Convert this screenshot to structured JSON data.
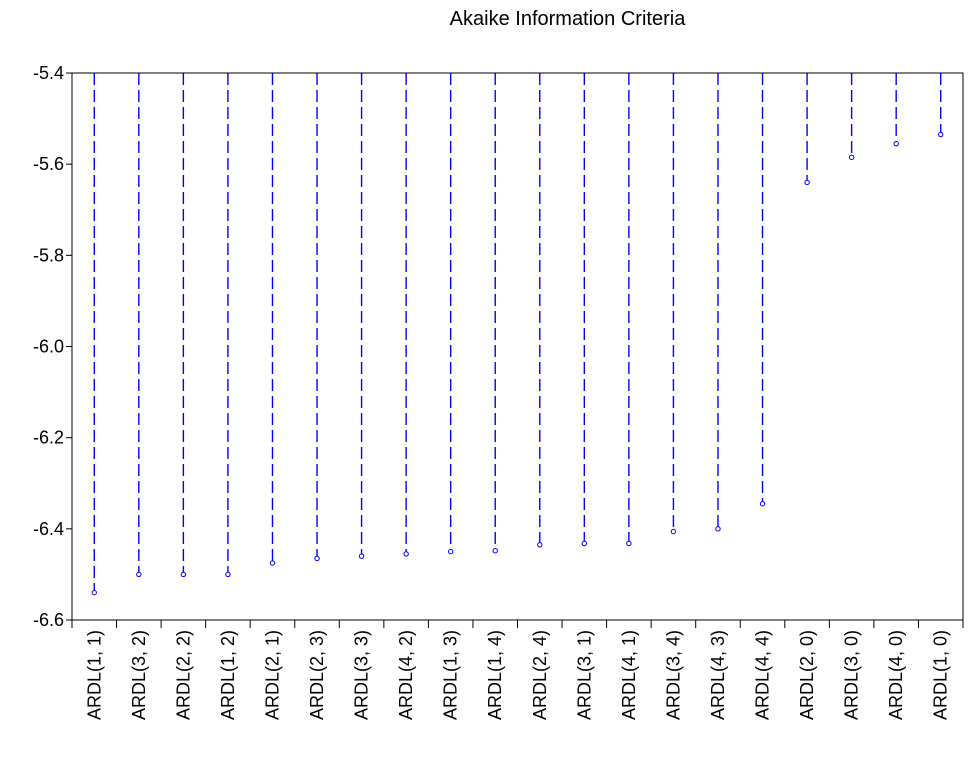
{
  "chart_data": {
    "type": "dropline",
    "title": "Akaike Information Criteria",
    "xlabel": "",
    "ylabel": "",
    "ylim": [
      -6.6,
      -5.4
    ],
    "yticks": [
      "-5.4",
      "-5.6",
      "-5.8",
      "-6.0",
      "-6.2",
      "-6.4",
      "-6.6"
    ],
    "ytick_values": [
      -5.4,
      -5.6,
      -5.8,
      -6.0,
      -6.2,
      -6.4,
      -6.6
    ],
    "categories": [
      "ARDL(1, 1)",
      "ARDL(3, 2)",
      "ARDL(2, 2)",
      "ARDL(1, 2)",
      "ARDL(2, 1)",
      "ARDL(2, 3)",
      "ARDL(3, 3)",
      "ARDL(4, 2)",
      "ARDL(1, 3)",
      "ARDL(1, 4)",
      "ARDL(2, 4)",
      "ARDL(3, 1)",
      "ARDL(4, 1)",
      "ARDL(3, 4)",
      "ARDL(4, 3)",
      "ARDL(4, 4)",
      "ARDL(2, 0)",
      "ARDL(3, 0)",
      "ARDL(4, 0)",
      "ARDL(1, 0)"
    ],
    "values": [
      -6.54,
      -6.5,
      -6.5,
      -6.5,
      -6.475,
      -6.465,
      -6.46,
      -6.455,
      -6.45,
      -6.448,
      -6.435,
      -6.432,
      -6.432,
      -6.406,
      -6.4,
      -6.345,
      -5.64,
      -5.585,
      -5.555,
      -5.535
    ],
    "grid": false,
    "legend": "none",
    "series_color": "#0000ff"
  }
}
